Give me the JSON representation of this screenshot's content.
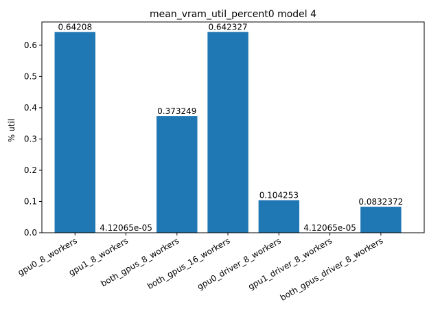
{
  "chart_data": {
    "type": "bar",
    "title": "mean_vram_util_percent0 model 4",
    "xlabel": "",
    "ylabel": "% util",
    "categories": [
      "gpu0_8_workers",
      "gpu1_8_workers",
      "both_gpus_8_workers",
      "both_gpus_16_workers",
      "gpu0_driver_8_workers",
      "gpu1_driver_8_workers",
      "both_gpus_driver_8_workers"
    ],
    "values": [
      0.64208,
      4.12065e-05,
      0.373249,
      0.642327,
      0.104253,
      4.12065e-05,
      0.0832372
    ],
    "data_labels": [
      "0.64208",
      "4.12065e-05",
      "0.373249",
      "0.642327",
      "0.104253",
      "4.12065e-05",
      "0.0832372"
    ],
    "yticks": [
      0.0,
      0.1,
      0.2,
      0.3,
      0.4,
      0.5,
      0.6
    ],
    "ytick_labels": [
      "0.0",
      "0.1",
      "0.2",
      "0.3",
      "0.4",
      "0.5",
      "0.6"
    ],
    "ylim": [
      0,
      0.6744
    ],
    "grid": false,
    "bar_color": "#1f77b4"
  }
}
